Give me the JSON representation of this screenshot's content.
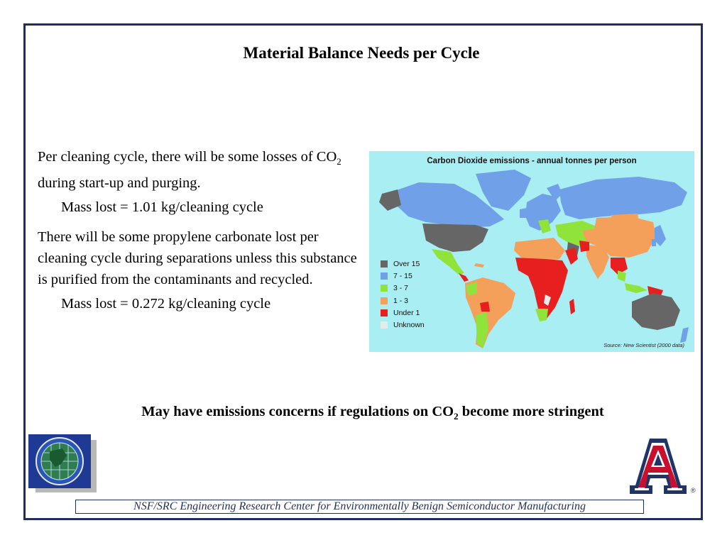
{
  "slide": {
    "title": "Material Balance Needs per Cycle",
    "paragraph1_a": "Per cleaning cycle, there will be some losses of CO",
    "paragraph1_sub": "2",
    "paragraph1_b": " during start-up and purging.",
    "mass1": "Mass lost = 1.01 kg/cleaning cycle",
    "paragraph2": "There will be some propylene carbonate lost per cleaning cycle during separations unless this substance is purified from the contaminants and recycled.",
    "mass2": "Mass lost = 0.272 kg/cleaning cycle",
    "note_a": "May have emissions concerns if regulations on CO",
    "note_sub": "2",
    "note_b": " become more stringent",
    "footer": "NSF/SRC Engineering Research Center for Environmentally Benign Semiconductor Manufacturing",
    "registered_mark": "®"
  },
  "map": {
    "title": "Carbon Dioxide emissions - annual tonnes per person",
    "source": "Source: New Scientist (2000 data)",
    "ocean_color": "#a9eef3",
    "legend": [
      {
        "label": "Over 15",
        "color": "#666666"
      },
      {
        "label": "7 - 15",
        "color": "#6fa0e8"
      },
      {
        "label": "3 - 7",
        "color": "#8fe33b"
      },
      {
        "label": "1 - 3",
        "color": "#f5a05a"
      },
      {
        "label": "Under 1",
        "color": "#e81f1f"
      },
      {
        "label": "Unknown",
        "color": "#e3ecec"
      }
    ]
  },
  "logos": {
    "left": "erc-globe-logo",
    "right": "university-of-arizona-logo"
  },
  "colors": {
    "frame": "#1f2f5a",
    "arizona_red": "#c8102e",
    "arizona_navy": "#1f3468"
  }
}
